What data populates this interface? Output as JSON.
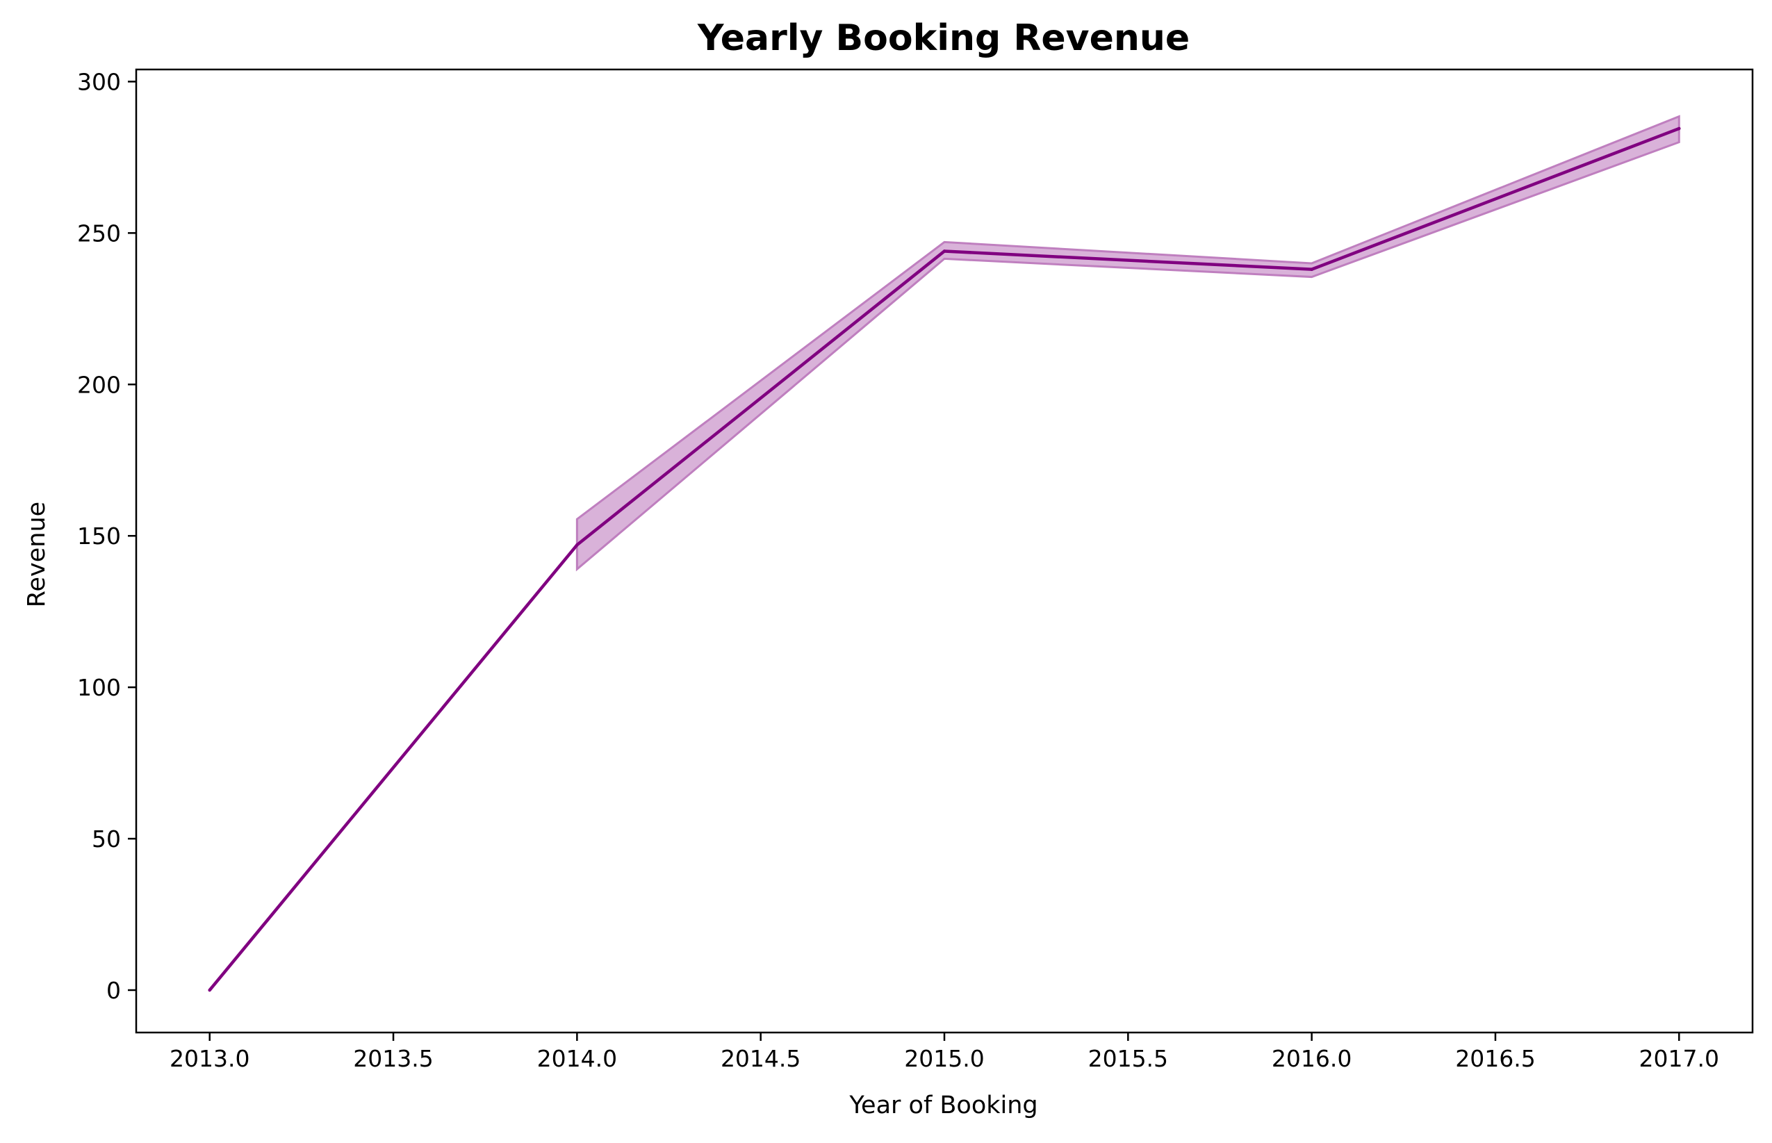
{
  "chart_data": {
    "type": "line",
    "title": "Yearly Booking Revenue",
    "xlabel": "Year of Booking",
    "ylabel": "Revenue",
    "xlim": [
      2012.8,
      2017.2
    ],
    "ylim": [
      -14,
      304
    ],
    "x_ticks": [
      2013.0,
      2013.5,
      2014.0,
      2014.5,
      2015.0,
      2015.5,
      2016.0,
      2016.5,
      2017.0
    ],
    "x_tick_labels": [
      "2013.0",
      "2013.5",
      "2014.0",
      "2014.5",
      "2015.0",
      "2015.5",
      "2016.0",
      "2016.5",
      "2017.0"
    ],
    "y_ticks": [
      0,
      50,
      100,
      150,
      200,
      250,
      300
    ],
    "y_tick_labels": [
      "0",
      "50",
      "100",
      "150",
      "200",
      "250",
      "300"
    ],
    "grid": false,
    "legend": null,
    "series": [
      {
        "x": [
          2013,
          2014,
          2015,
          2016,
          2017
        ],
        "y": [
          0,
          147,
          244,
          238,
          284.5
        ],
        "ci_lower": [
          0,
          139,
          241.5,
          235.5,
          280
        ],
        "ci_upper": [
          0,
          155.5,
          247,
          240,
          288.5
        ],
        "color": "#800080",
        "band_color": "#bf7fbf"
      }
    ]
  }
}
